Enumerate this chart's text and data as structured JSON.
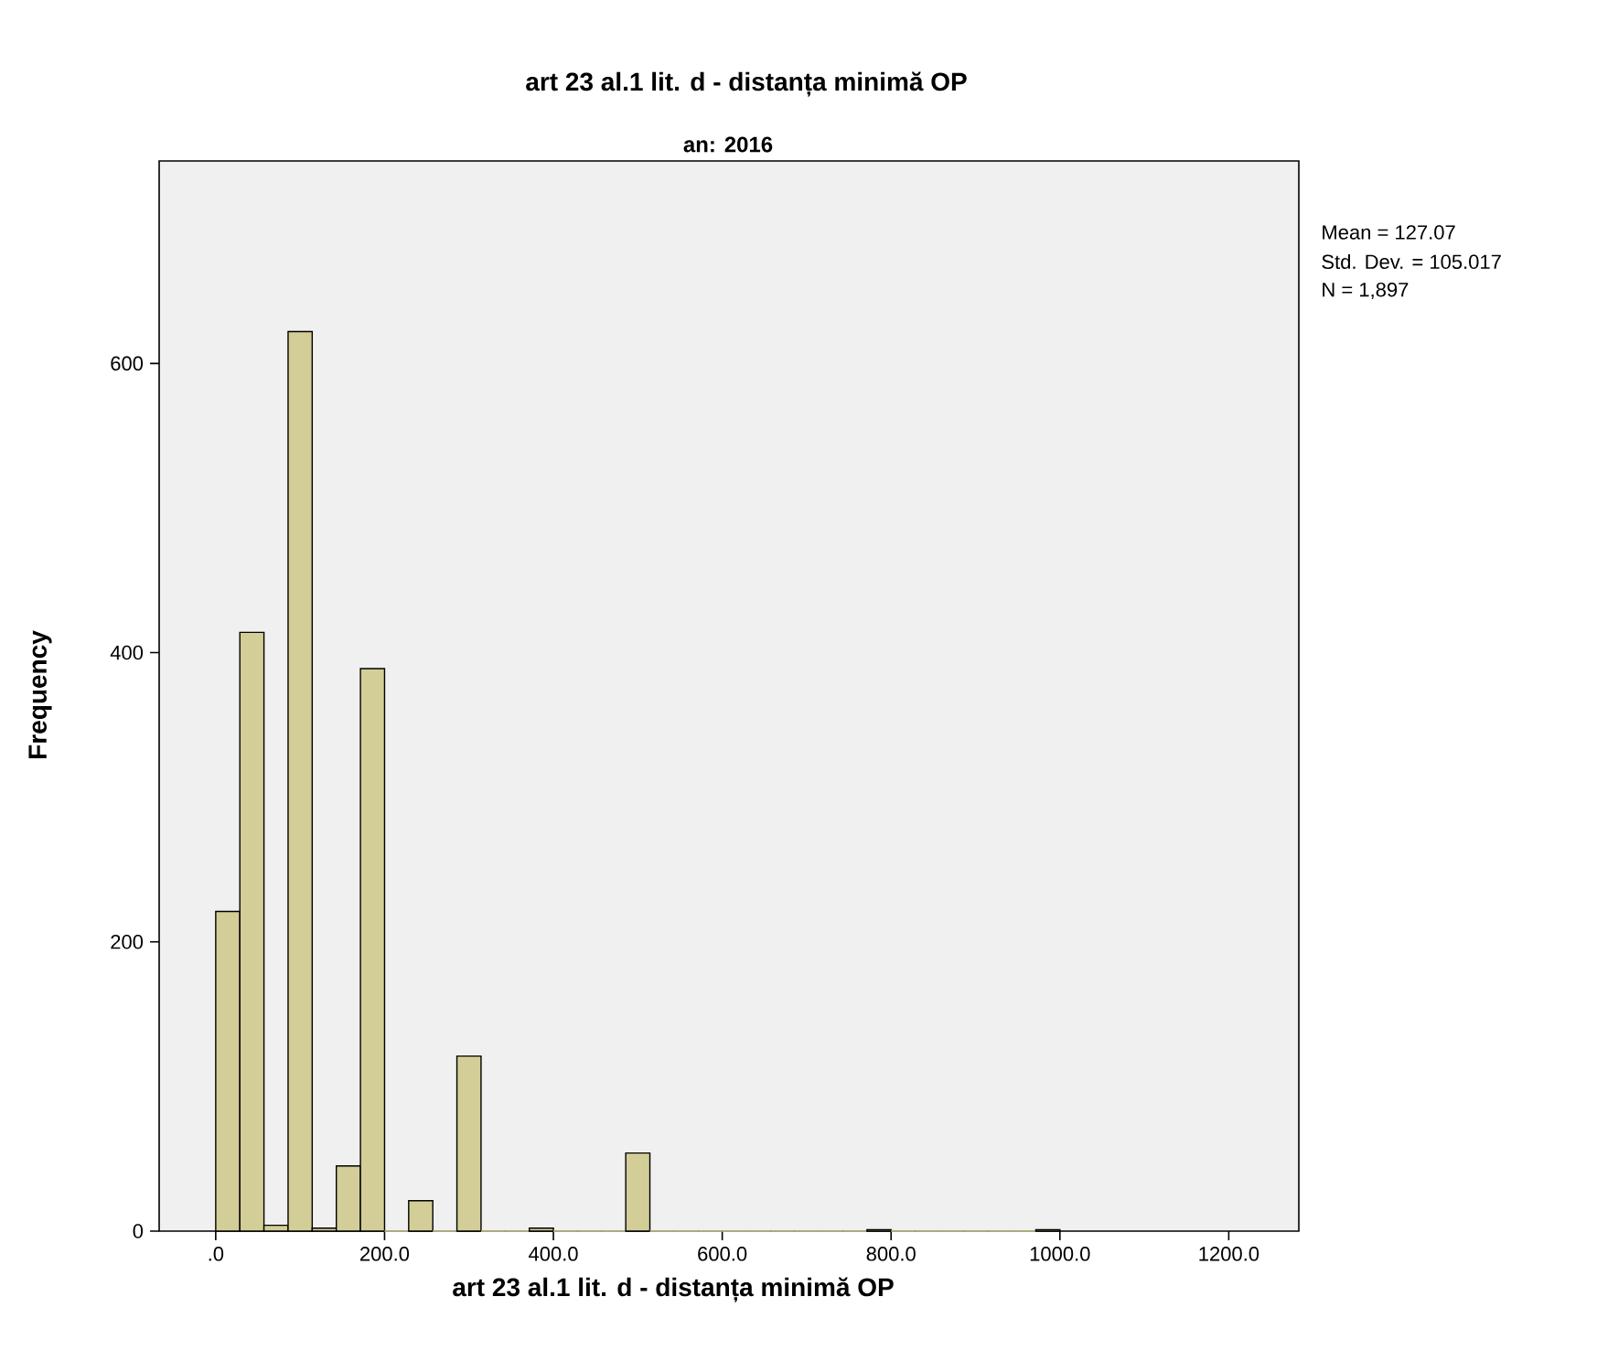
{
  "chart_data": {
    "type": "histogram",
    "title": "art 23 al.1 lit. d - distanța minimă OP",
    "subtitle": "an: 2016",
    "xlabel": "art 23 al.1 lit. d - distanța minimă OP",
    "ylabel": "Frequency",
    "bins": [
      0,
      28.57,
      57.14,
      85.71,
      114.29,
      142.86,
      171.43,
      200,
      228.57,
      257.14,
      285.71,
      314.29,
      342.86,
      371.43,
      400,
      428.57,
      457.14,
      485.71,
      514.29,
      542.86,
      571.43,
      600,
      628.57,
      657.14,
      685.71,
      714.29,
      742.86,
      771.43,
      800,
      828.57,
      857.14,
      885.71,
      914.29,
      942.86,
      971.43,
      1000
    ],
    "values": [
      221,
      414,
      4,
      622,
      2,
      45,
      389,
      0,
      21,
      0,
      121,
      0,
      0,
      2,
      0,
      0,
      0,
      54,
      0,
      0,
      0,
      0,
      0,
      0,
      0,
      0,
      0,
      1,
      0,
      0,
      0,
      0,
      0,
      0,
      1
    ],
    "color": "#d3ce97",
    "xlim": [
      -67,
      1283
    ],
    "ylim": [
      0,
      740
    ],
    "xticks": [
      {
        "value": 0,
        "label": ".0"
      },
      {
        "value": 200,
        "label": "200.0"
      },
      {
        "value": 400,
        "label": "400.0"
      },
      {
        "value": 600,
        "label": "600.0"
      },
      {
        "value": 800,
        "label": "800.0"
      },
      {
        "value": 1000,
        "label": "1000.0"
      },
      {
        "value": 1200,
        "label": "1200.0"
      }
    ],
    "yticks": [
      0,
      200,
      400,
      600
    ],
    "grid": false,
    "annotations": [
      "Mean = 127.07",
      "Std. Dev. = 105.017",
      "N = 1,897"
    ]
  }
}
